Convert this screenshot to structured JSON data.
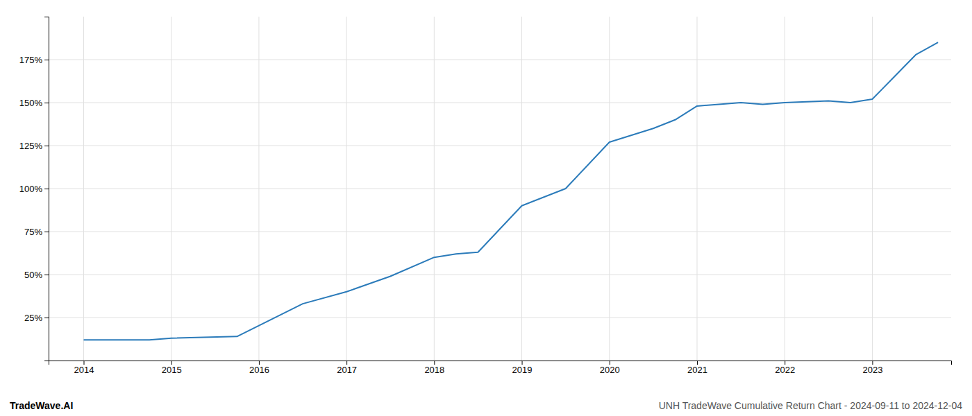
{
  "chart_data": {
    "type": "line",
    "x": [
      2014.0,
      2014.75,
      2015.0,
      2015.75,
      2016.5,
      2017.0,
      2017.5,
      2018.0,
      2018.25,
      2018.5,
      2019.0,
      2019.5,
      2020.0,
      2020.5,
      2020.75,
      2021.0,
      2021.25,
      2021.5,
      2021.75,
      2022.0,
      2022.5,
      2022.75,
      2023.0,
      2023.25,
      2023.5,
      2023.75
    ],
    "values": [
      12,
      12,
      13,
      14,
      33,
      40,
      49,
      60,
      62,
      63,
      90,
      100,
      127,
      135,
      140,
      148,
      149,
      150,
      149,
      150,
      151,
      150,
      152,
      165,
      178,
      185
    ],
    "color": "#2b7bba",
    "xlim": [
      2013.6,
      2023.9
    ],
    "xticks": [
      2014,
      2015,
      2016,
      2017,
      2018,
      2019,
      2020,
      2021,
      2022,
      2023
    ],
    "ylim": [
      0,
      200
    ],
    "yticks": [
      {
        "value": 25,
        "label": "25%"
      },
      {
        "value": 50,
        "label": "50%"
      },
      {
        "value": 75,
        "label": "75%"
      },
      {
        "value": 100,
        "label": "100%"
      },
      {
        "value": 125,
        "label": "125%"
      },
      {
        "value": 150,
        "label": "150%"
      },
      {
        "value": 175,
        "label": "175%"
      }
    ],
    "grid": true,
    "annotations": [
      "TradeWave.AI",
      "UNH TradeWave Cumulative Return Chart - 2024-09-11 to 2024-12-04"
    ]
  }
}
